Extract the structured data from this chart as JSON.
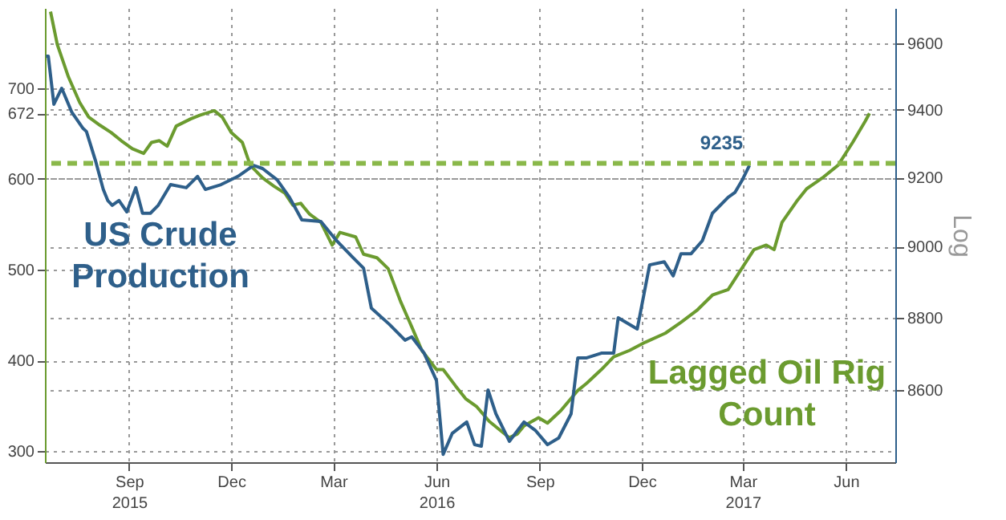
{
  "chart_data": {
    "type": "line",
    "y2label": "Log",
    "xlim": [
      "2015-06-18",
      "2017-07-15"
    ],
    "xticks": [
      {
        "value": "2015-09-01",
        "label": "Sep\n2015"
      },
      {
        "value": "2015-12-01",
        "label": "Dec"
      },
      {
        "value": "2016-03-01",
        "label": "Mar"
      },
      {
        "value": "2016-06-01",
        "label": "Jun\n2016"
      },
      {
        "value": "2016-09-01",
        "label": "Sep"
      },
      {
        "value": "2016-12-01",
        "label": "Dec"
      },
      {
        "value": "2017-03-01",
        "label": "Mar\n2017"
      },
      {
        "value": "2017-06-01",
        "label": "Jun"
      }
    ],
    "ylim": [
      288,
      788
    ],
    "yticks": [
      300,
      400,
      500,
      600,
      672,
      700
    ],
    "y2lim": [
      8405,
      9708
    ],
    "y2ticks": [
      8600,
      8800,
      9000,
      9200,
      9400,
      9600
    ],
    "log": "y2",
    "grid": true,
    "ref_lines": [
      {
        "axis": "y",
        "value": 617,
        "color": "#8ab84a",
        "line_style": "dashed"
      }
    ],
    "series": [
      {
        "name": "Lagged Oil Rig Count",
        "color": "#6b9b2f",
        "x": [
          "2015-06-23",
          "2015-06-29",
          "2015-07-09",
          "2015-07-19",
          "2015-07-27",
          "2015-08-06",
          "2015-08-16",
          "2015-08-25",
          "2015-09-04",
          "2015-09-14",
          "2015-09-21",
          "2015-09-28",
          "2015-10-05",
          "2015-10-13",
          "2015-10-26",
          "2015-11-03",
          "2015-11-16",
          "2015-11-23",
          "2015-12-01",
          "2015-12-11",
          "2015-12-18",
          "2015-12-29",
          "2016-01-08",
          "2016-01-18",
          "2016-01-25",
          "2016-02-01",
          "2016-02-09",
          "2016-02-19",
          "2016-02-29",
          "2016-03-07",
          "2016-03-21",
          "2016-03-28",
          "2016-04-09",
          "2016-04-19",
          "2016-04-30",
          "2016-05-10",
          "2016-05-19",
          "2016-06-01",
          "2016-06-07",
          "2016-06-18",
          "2016-06-27",
          "2016-07-07",
          "2016-07-18",
          "2016-07-27",
          "2016-08-05",
          "2016-08-12",
          "2016-08-18",
          "2016-08-31",
          "2016-09-08",
          "2016-09-20",
          "2016-10-05",
          "2016-10-13",
          "2016-10-26",
          "2016-11-06",
          "2016-11-20",
          "2016-12-04",
          "2016-12-22",
          "2017-01-05",
          "2017-01-19",
          "2017-02-02",
          "2017-02-16",
          "2017-02-28",
          "2017-03-11",
          "2017-03-22",
          "2017-03-29",
          "2017-04-05",
          "2017-04-18",
          "2017-04-27",
          "2017-05-11",
          "2017-05-25",
          "2017-06-07",
          "2017-06-18",
          "2017-06-22"
        ],
        "values": [
          784,
          748,
          712,
          684,
          668,
          659,
          651,
          642,
          633,
          628,
          640,
          642,
          636,
          658,
          666,
          670,
          675,
          668,
          651,
          640,
          615,
          601,
          592,
          584,
          571,
          573,
          561,
          552,
          527,
          541,
          536,
          517,
          513,
          501,
          465,
          437,
          411,
          390,
          390,
          372,
          358,
          349,
          333,
          324,
          315,
          319,
          328,
          337,
          331,
          345,
          367,
          375,
          390,
          404,
          411,
          420,
          430,
          442,
          455,
          472,
          478,
          501,
          522,
          527,
          522,
          552,
          575,
          589,
          601,
          615,
          640,
          663,
          672
        ]
      },
      {
        "name": "US Crude Production",
        "color": "#2e5f8a",
        "axis": "y2",
        "x": [
          "2015-06-19",
          "2015-06-21",
          "2015-06-26",
          "2015-07-03",
          "2015-07-12",
          "2015-07-22",
          "2015-07-25",
          "2015-08-02",
          "2015-08-09",
          "2015-08-13",
          "2015-08-17",
          "2015-08-23",
          "2015-08-30",
          "2015-09-07",
          "2015-09-13",
          "2015-09-20",
          "2015-09-27",
          "2015-10-08",
          "2015-10-22",
          "2015-11-01",
          "2015-11-08",
          "2015-11-22",
          "2015-12-07",
          "2015-12-21",
          "2015-12-29",
          "2016-01-11",
          "2016-01-22",
          "2016-02-02",
          "2016-02-19",
          "2016-03-04",
          "2016-03-18",
          "2016-03-28",
          "2016-04-04",
          "2016-04-20",
          "2016-05-04",
          "2016-05-10",
          "2016-05-21",
          "2016-06-01",
          "2016-06-07",
          "2016-06-15",
          "2016-06-28",
          "2016-07-05",
          "2016-07-11",
          "2016-07-17",
          "2016-07-24",
          "2016-08-05",
          "2016-08-18",
          "2016-08-28",
          "2016-09-08",
          "2016-09-18",
          "2016-09-29",
          "2016-10-05",
          "2016-10-13",
          "2016-10-26",
          "2016-11-06",
          "2016-11-10",
          "2016-11-27",
          "2016-12-08",
          "2016-12-21",
          "2016-12-29",
          "2017-01-05",
          "2017-01-14",
          "2017-01-24",
          "2017-02-02",
          "2017-02-16",
          "2017-02-22",
          "2017-02-28",
          "2017-03-07"
        ],
        "values": [
          9561,
          9561,
          9416,
          9464,
          9392,
          9344,
          9335,
          9250,
          9165,
          9133,
          9119,
          9133,
          9100,
          9170,
          9096,
          9096,
          9119,
          9179,
          9170,
          9203,
          9165,
          9179,
          9203,
          9235,
          9226,
          9193,
          9142,
          9077,
          9072,
          9017,
          8971,
          8939,
          8826,
          8781,
          8737,
          8746,
          8701,
          8626,
          8426,
          8482,
          8513,
          8452,
          8448,
          8600,
          8535,
          8461,
          8513,
          8491,
          8452,
          8470,
          8535,
          8688,
          8688,
          8701,
          8701,
          8799,
          8768,
          8948,
          8957,
          8917,
          8980,
          8980,
          9017,
          9096,
          9142,
          9156,
          9189,
          9235
        ],
        "value_labels": [
          null,
          null,
          null,
          null,
          null,
          null,
          null,
          null,
          null,
          null,
          null,
          null,
          null,
          null,
          null,
          null,
          null,
          null,
          null,
          null,
          null,
          null,
          null,
          null,
          null,
          null,
          null,
          null,
          null,
          null,
          null,
          null,
          null,
          null,
          null,
          null,
          null,
          null,
          null,
          null,
          null,
          null,
          null,
          null,
          null,
          null,
          null,
          null,
          null,
          null,
          null,
          null,
          null,
          null,
          null,
          null,
          null,
          null,
          null,
          null,
          null,
          null,
          null,
          null,
          null,
          null,
          null,
          "9235"
        ]
      }
    ]
  }
}
